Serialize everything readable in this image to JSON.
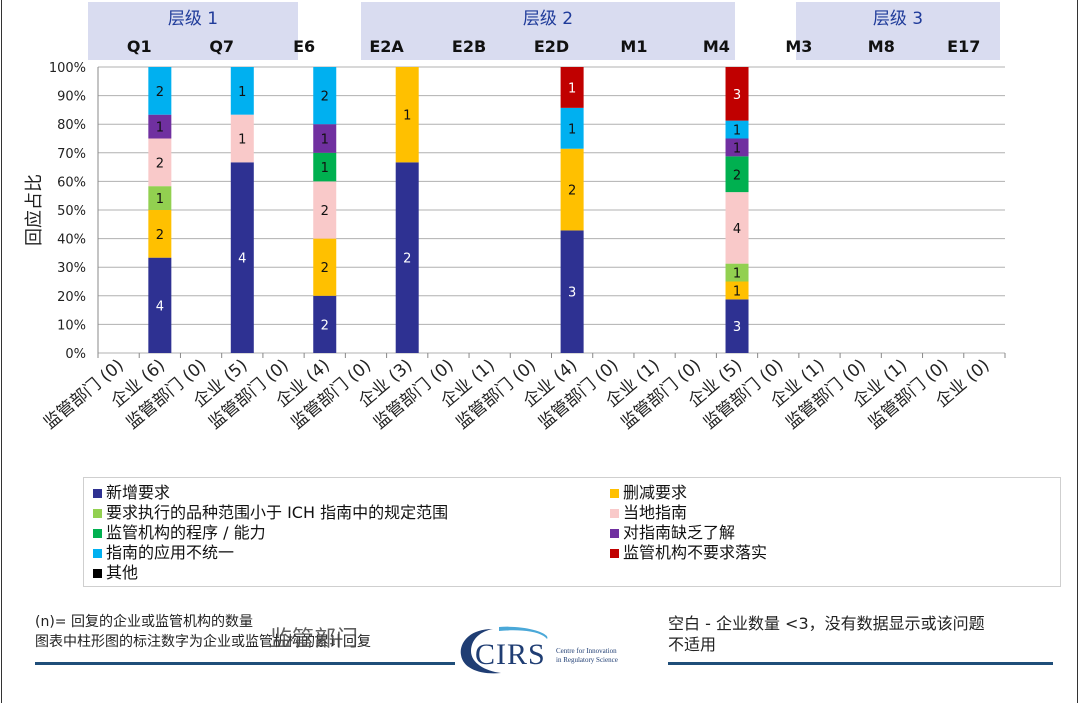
{
  "chart_data": {
    "type": "bar",
    "stacked": true,
    "ylabel": "回应占比",
    "yticks": [
      "0%",
      "10%",
      "20%",
      "30%",
      "40%",
      "50%",
      "60%",
      "70%",
      "80%",
      "90%",
      "100%"
    ],
    "ylim": [
      0,
      100
    ],
    "tiers": [
      {
        "label": "层级 1",
        "codes": [
          "Q1",
          "Q7",
          "E6"
        ]
      },
      {
        "label": "层级 2",
        "codes": [
          "E2A",
          "E2B",
          "E2D",
          "M1",
          "M4"
        ]
      },
      {
        "label": "层级 3",
        "codes": [
          "M3",
          "M8",
          "E17"
        ]
      }
    ],
    "categories": [
      "监管部门 (0)",
      "企业 (6)",
      "监管部门 (0)",
      "企业 (5)",
      "监管部门 (0)",
      "企业 (4)",
      "监管部门 (0)",
      "企业 (3)",
      "监管部门 (0)",
      "企业 (1)",
      "监管部门 (0)",
      "企业 (4)",
      "监管部门 (0)",
      "企业 (1)",
      "监管部门 (0)",
      "企业 (5)",
      "监管部门 (0)",
      "企业 (1)",
      "监管部门 (0)",
      "企业 (1)",
      "监管部门 (0)",
      "企业 (0)"
    ],
    "series": [
      {
        "name": "新增要求",
        "color": "#2e3192",
        "values": [
          0,
          4,
          0,
          4,
          0,
          2,
          0,
          2,
          0,
          0,
          0,
          3,
          0,
          0,
          0,
          3,
          0,
          0,
          0,
          0,
          0,
          0
        ]
      },
      {
        "name": "删减要求",
        "color": "#ffc000",
        "values": [
          0,
          2,
          0,
          0,
          0,
          2,
          0,
          1,
          0,
          0,
          0,
          2,
          0,
          0,
          0,
          1,
          0,
          0,
          0,
          0,
          0,
          0
        ]
      },
      {
        "name": "要求执行的品种范围小于 ICH 指南中的规定范围",
        "color": "#92d050",
        "values": [
          0,
          1,
          0,
          0,
          0,
          0,
          0,
          0,
          0,
          0,
          0,
          0,
          0,
          0,
          0,
          1,
          0,
          0,
          0,
          0,
          0,
          0
        ]
      },
      {
        "name": "当地指南",
        "color": "#f9c9c9",
        "values": [
          0,
          2,
          0,
          1,
          0,
          2,
          0,
          0,
          0,
          0,
          0,
          0,
          0,
          0,
          0,
          4,
          0,
          0,
          0,
          0,
          0,
          0
        ]
      },
      {
        "name": "监管机构的程序 / 能力",
        "color": "#00b050",
        "values": [
          0,
          0,
          0,
          0,
          0,
          1,
          0,
          0,
          0,
          0,
          0,
          0,
          0,
          0,
          0,
          2,
          0,
          0,
          0,
          0,
          0,
          0
        ]
      },
      {
        "name": "对指南缺乏了解",
        "color": "#7030a0",
        "values": [
          0,
          1,
          0,
          0,
          0,
          1,
          0,
          0,
          0,
          0,
          0,
          0,
          0,
          0,
          0,
          1,
          0,
          0,
          0,
          0,
          0,
          0
        ]
      },
      {
        "name": "指南的应用不统一",
        "color": "#00b0f0",
        "values": [
          0,
          2,
          0,
          1,
          0,
          2,
          0,
          0,
          0,
          0,
          0,
          1,
          0,
          0,
          0,
          1,
          0,
          0,
          0,
          0,
          0,
          0
        ]
      },
      {
        "name": "监管机构不要求落实",
        "color": "#c00000",
        "values": [
          0,
          0,
          0,
          0,
          0,
          0,
          0,
          0,
          0,
          0,
          0,
          1,
          0,
          0,
          0,
          3,
          0,
          0,
          0,
          0,
          0,
          0
        ]
      },
      {
        "name": "其他",
        "color": "#000000",
        "values": [
          0,
          0,
          0,
          0,
          0,
          0,
          0,
          0,
          0,
          0,
          0,
          0,
          0,
          0,
          0,
          0,
          0,
          0,
          0,
          0,
          0,
          0
        ]
      }
    ]
  },
  "legend_order": [
    [
      "新增要求",
      "删减要求"
    ],
    [
      "要求执行的品种范围小于 ICH 指南中的规定范围",
      "当地指南"
    ],
    [
      "监管机构的程序 / 能力",
      "对指南缺乏了解"
    ],
    [
      "指南的应用不统一",
      "监管机构不要求落实"
    ],
    [
      "其他",
      ""
    ]
  ],
  "footer": {
    "note_line1": "(n)= 回复的企业或监管机构的数量",
    "note_line2": "图表中柱形图的标注数字为企业或监管机构的累计回复",
    "note_overlap": "监管部门",
    "right_line1": "空白 - 企业数量 <3，没有数据显示或该问题",
    "right_line2": "不适用"
  },
  "logo": {
    "name": "CIRS",
    "sub1": "Centre for Innovation",
    "sub2": "in Regulatory Science"
  }
}
